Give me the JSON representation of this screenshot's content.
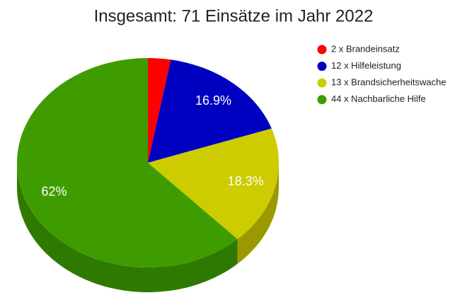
{
  "chart_data": {
    "type": "pie",
    "title": "Insgesamt: 71 Einsätze im Jahr 2022",
    "categories": [
      "2 x Brandeinsatz",
      "12 x Hilfeleistung",
      "13 x Brandsicherheitswache",
      "44 x Nachbarliche Hilfe"
    ],
    "values": [
      2.8,
      16.9,
      18.3,
      62
    ],
    "value_labels": [
      null,
      "16.9%",
      "18.3%",
      "62%"
    ],
    "colors": [
      "#ff0000",
      "#0000c0",
      "#cccc00",
      "#3f9c00"
    ],
    "side_colors": [
      "#a00000",
      "#000080",
      "#9a9a00",
      "#2e7a00"
    ],
    "legend": "top-right"
  }
}
